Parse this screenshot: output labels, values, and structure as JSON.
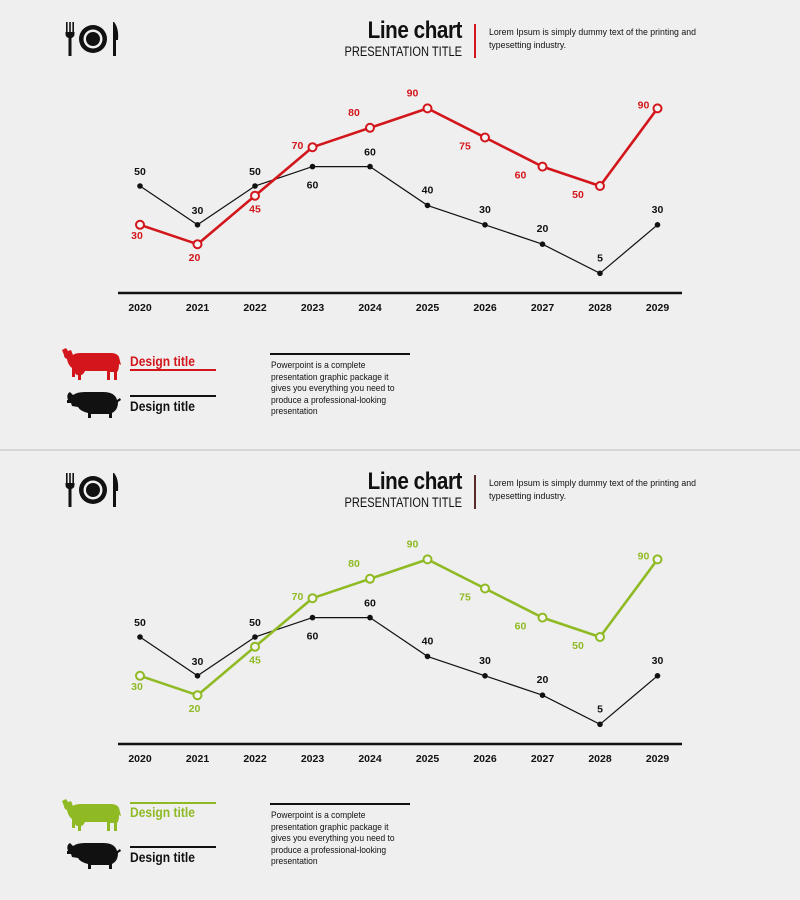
{
  "header": {
    "title": "Line chart",
    "subtitle": "PRESENTATION TITLE",
    "description": "Lorem Ipsum is simply dummy text of the printing and typesetting industry."
  },
  "legend": {
    "series_1_label": "Design title",
    "series_2_label": "Design title"
  },
  "body_text": "Powerpoint is a complete presentation graphic package it gives you everything you need to produce a professional-looking presentation",
  "icons": {
    "cutlery": "cutlery-icon",
    "cow": "cow-icon",
    "pig": "pig-icon"
  },
  "colors": {
    "slide_1_accent": "#d3161b",
    "slide_2_accent": "#8fba24",
    "secondary_series": "#111111",
    "slide_2_title_bar": "#5a2a2a"
  },
  "chart_data": [
    {
      "type": "line",
      "title": "Line chart",
      "x": [
        "2020",
        "2021",
        "2022",
        "2023",
        "2024",
        "2025",
        "2026",
        "2027",
        "2028",
        "2029"
      ],
      "series": [
        {
          "name": "Design title",
          "icon": "cow-icon",
          "color": "#d3161b",
          "values": [
            30,
            20,
            45,
            70,
            80,
            90,
            75,
            60,
            50,
            90
          ]
        },
        {
          "name": "Design title",
          "icon": "pig-icon",
          "color": "#111111",
          "values": [
            50,
            30,
            50,
            60,
            60,
            40,
            30,
            20,
            5,
            30
          ]
        }
      ],
      "ylim": [
        0,
        100
      ]
    },
    {
      "type": "line",
      "title": "Line chart",
      "x": [
        "2020",
        "2021",
        "2022",
        "2023",
        "2024",
        "2025",
        "2026",
        "2027",
        "2028",
        "2029"
      ],
      "series": [
        {
          "name": "Design title",
          "icon": "cow-icon",
          "color": "#8fba24",
          "values": [
            30,
            20,
            45,
            70,
            80,
            90,
            75,
            60,
            50,
            90
          ]
        },
        {
          "name": "Design title",
          "icon": "pig-icon",
          "color": "#111111",
          "values": [
            50,
            30,
            50,
            60,
            60,
            40,
            30,
            20,
            5,
            30
          ]
        }
      ],
      "ylim": [
        0,
        100
      ]
    }
  ]
}
